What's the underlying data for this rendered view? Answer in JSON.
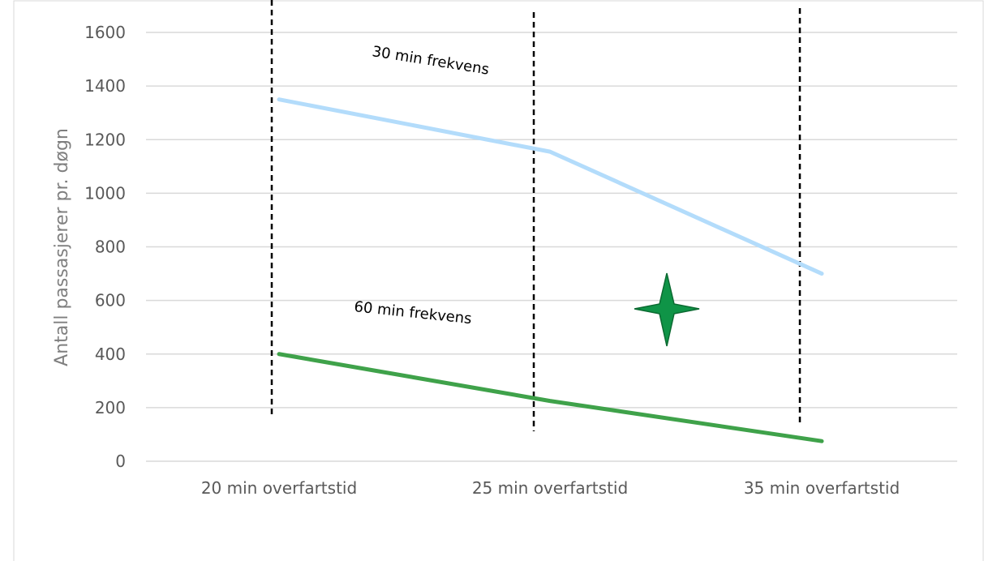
{
  "chart_data": {
    "type": "line",
    "categories": [
      "20 min overfartstid",
      "25 min overfartstid",
      "35 min overfartstid"
    ],
    "series": [
      {
        "name": "30 min frekvens",
        "values": [
          1350,
          1155,
          700
        ],
        "color": "#b3dcfb"
      },
      {
        "name": "60 min frekvens",
        "values": [
          400,
          225,
          75
        ],
        "color": "#3fa24a"
      }
    ],
    "ylabel": "Antall passasjerer pr. døgn",
    "ylim": [
      0,
      1600
    ],
    "yticks": [
      0,
      200,
      400,
      600,
      800,
      1000,
      1200,
      1400,
      1600
    ],
    "grid": true,
    "legend": "none",
    "annotations": {
      "series_labels": [
        "30 min frekvens",
        "60 min frekvens"
      ],
      "marker": {
        "shape": "four-point-star",
        "color": "#0f9447",
        "x_between": [
          1,
          2
        ],
        "y": 570
      },
      "dividers": "dashed vertical lines near each category"
    }
  }
}
